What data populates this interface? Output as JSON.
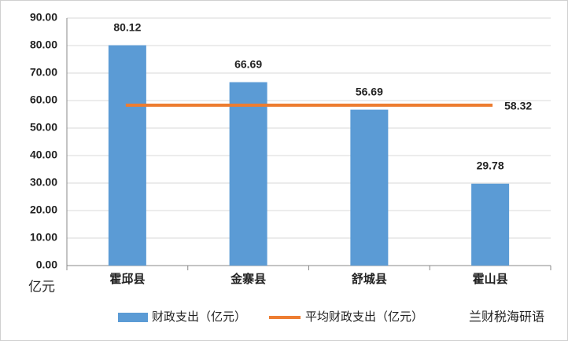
{
  "chart_data": {
    "type": "bar",
    "categories": [
      "霍邱县",
      "金寨县",
      "舒城县",
      "霍山县"
    ],
    "series": [
      {
        "name": "财政支出（亿元）",
        "color": "#5b9bd5",
        "values": [
          80.12,
          66.69,
          56.69,
          29.78
        ]
      }
    ],
    "reference_line": {
      "name": "平均财政支出（亿元）",
      "color": "#ed7d31",
      "value": 58.32
    },
    "y_label": "亿元",
    "ylim": [
      0,
      90
    ],
    "yticks": [
      {
        "value": 0,
        "label": "0.00"
      },
      {
        "value": 10,
        "label": "10.00"
      },
      {
        "value": 20,
        "label": "20.00"
      },
      {
        "value": 30,
        "label": "30.00"
      },
      {
        "value": 40,
        "label": "40.00"
      },
      {
        "value": 50,
        "label": "50.00"
      },
      {
        "value": 60,
        "label": "60.00"
      },
      {
        "value": 70,
        "label": "70.00"
      },
      {
        "value": 80,
        "label": "80.00"
      },
      {
        "value": 90,
        "label": "90.00"
      }
    ],
    "grid": true,
    "legend_position": "bottom",
    "watermark": "兰财税海研语"
  }
}
